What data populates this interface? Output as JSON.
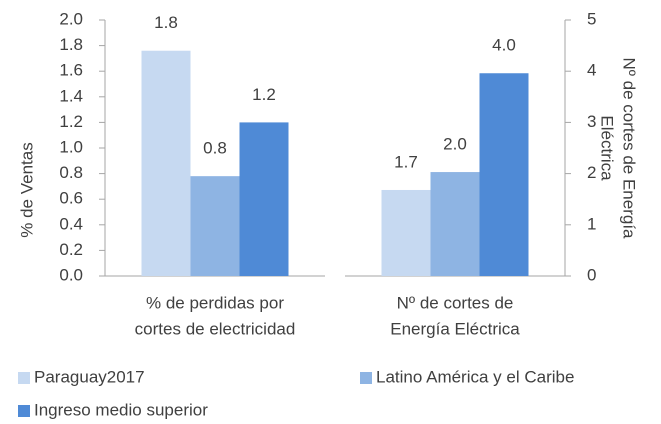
{
  "chart_data": {
    "type": "bar",
    "categories": [
      [
        "% de perdidas por",
        "cortes de electricidad"
      ],
      [
        "Nº  de cortes de",
        "Energía Eléctrica"
      ]
    ],
    "category_axes": [
      "y",
      "y2"
    ],
    "series": [
      {
        "name": "Paraguay2017",
        "color": "#c6d9f1",
        "values": [
          1.76,
          1.68
        ],
        "value_labels": [
          "1.8",
          "1.7"
        ]
      },
      {
        "name": "Latino América y el Caribe",
        "color": "#8eb4e3",
        "values": [
          0.78,
          2.03
        ],
        "value_labels": [
          "0.8",
          "2.0"
        ]
      },
      {
        "name": "Ingreso medio superior",
        "color": "#4f8ad6",
        "values": [
          1.2,
          3.96
        ],
        "value_labels": [
          "1.2",
          "4.0"
        ]
      }
    ],
    "ylabel": "% de Ventas",
    "y2label": [
      "Nº  de cortes de Energía",
      "Eléctrica"
    ],
    "ylim": [
      0,
      2
    ],
    "y2lim": [
      0,
      5
    ],
    "yticks": [
      {
        "value": 0,
        "label": "0.0"
      },
      {
        "value": 0.2,
        "label": "0.2"
      },
      {
        "value": 0.4,
        "label": "0.4"
      },
      {
        "value": 0.6,
        "label": "0.6"
      },
      {
        "value": 0.8,
        "label": "0.8"
      },
      {
        "value": 1,
        "label": "1.0"
      },
      {
        "value": 1.2,
        "label": "1.2"
      },
      {
        "value": 1.4,
        "label": "1.4"
      },
      {
        "value": 1.6,
        "label": "1.6"
      },
      {
        "value": 1.8,
        "label": "1.8"
      },
      {
        "value": 2,
        "label": "2.0"
      }
    ],
    "y2ticks": [
      0,
      1,
      2,
      3,
      4,
      5
    ],
    "legend": "bottom"
  }
}
